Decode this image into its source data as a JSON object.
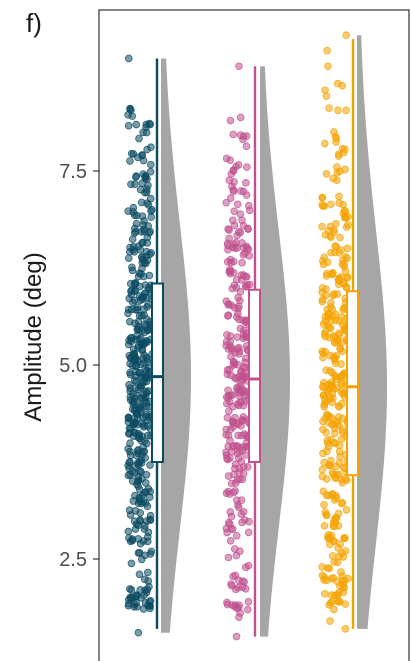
{
  "panel_label": "f)",
  "chart_data": {
    "type": "raincloud",
    "title": "",
    "xlabel": "",
    "ylabel": "Amplitude (deg)",
    "ylim": [
      1.2,
      9.5
    ],
    "yticks": [
      2.5,
      5.0,
      7.5
    ],
    "ytick_labels": [
      "2.5",
      "5.0",
      "7.5"
    ],
    "grid": false,
    "legend": "none",
    "series": [
      {
        "color": "#0b4a63",
        "box": {
          "min": 1.6,
          "q1": 3.75,
          "median": 4.85,
          "q3": 6.05,
          "max": 8.95
        },
        "points_range": [
          1.55,
          8.95
        ],
        "outliers": [
          8.95,
          8.1,
          8.1,
          2.0,
          1.95,
          1.9,
          1.55
        ],
        "n_points": 420
      },
      {
        "color": "#c0508e",
        "box": {
          "min": 1.5,
          "q1": 3.75,
          "median": 4.82,
          "q3": 5.97,
          "max": 8.85
        },
        "points_range": [
          1.5,
          8.85
        ],
        "outliers": [
          8.85,
          8.15,
          1.95,
          1.75,
          1.5
        ],
        "n_points": 300
      },
      {
        "color": "#f4a300",
        "box": {
          "min": 1.6,
          "q1": 3.58,
          "median": 4.72,
          "q3": 5.95,
          "max": 9.2
        },
        "points_range": [
          1.6,
          9.25
        ],
        "outliers": [
          9.25,
          9.05,
          8.85,
          8.6,
          1.85,
          1.7,
          1.6
        ],
        "n_points": 340
      }
    ],
    "density_color": "#a6a6a6"
  }
}
